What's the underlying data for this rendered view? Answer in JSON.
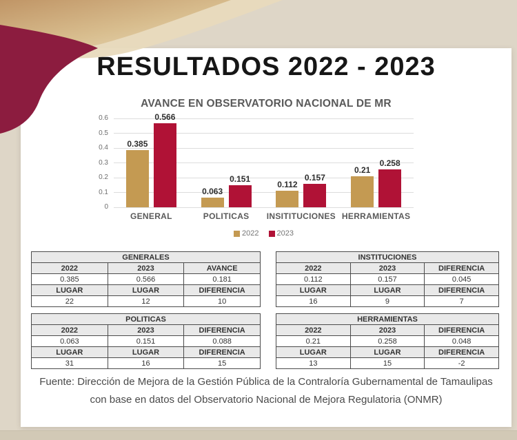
{
  "slide": {
    "title": "RESULTADOS 2022 - 2023",
    "footer_line1": "Fuente: Dirección de Mejora de la Gestión Pública de la Contraloría Gubernamental de Tamaulipas",
    "footer_line2": "con base en datos del Observatorio Nacional de Mejora Regulatoria (ONMR)"
  },
  "theme": {
    "background_beige": "#ded6c7",
    "swoosh_tan": "#c9a36c",
    "swoosh_maroon": "#8c1c3f",
    "card_white": "#ffffff"
  },
  "chart_data": {
    "type": "bar",
    "title": "AVANCE EN OBSERVATORIO NACIONAL DE MR",
    "categories": [
      "GENERAL",
      "POLITICAS",
      "INSITITUCIONES",
      "HERRAMIENTAS"
    ],
    "series": [
      {
        "name": "2022",
        "color": "#c49a52",
        "values": [
          0.385,
          0.063,
          0.112,
          0.21
        ]
      },
      {
        "name": "2023",
        "color": "#b01236",
        "values": [
          0.566,
          0.151,
          0.157,
          0.258
        ]
      }
    ],
    "xlabel": "",
    "ylabel": "",
    "ylim": [
      0,
      0.6
    ],
    "yticks": [
      0,
      0.1,
      0.2,
      0.3,
      0.4,
      0.5,
      0.6
    ],
    "grid": true,
    "data_labels": true,
    "legend_position": "bottom"
  },
  "tables": [
    {
      "title": "GENERALES",
      "header1": [
        "2022",
        "2023",
        "AVANCE"
      ],
      "row1": [
        "0.385",
        "0.566",
        "0.181"
      ],
      "header2": [
        "LUGAR",
        "LUGAR",
        "DIFERENCIA"
      ],
      "row2": [
        "22",
        "12",
        "10"
      ]
    },
    {
      "title": "INSTITUCIONES",
      "header1": [
        "2022",
        "2023",
        "DIFERENCIA"
      ],
      "row1": [
        "0.112",
        "0.157",
        "0.045"
      ],
      "header2": [
        "LUGAR",
        "LUGAR",
        "DIFERENCIA"
      ],
      "row2": [
        "16",
        "9",
        "7"
      ]
    },
    {
      "title": "POLITICAS",
      "header1": [
        "2022",
        "2023",
        "DIFERENCIA"
      ],
      "row1": [
        "0.063",
        "0.151",
        "0.088"
      ],
      "header2": [
        "LUGAR",
        "LUGAR",
        "DIFERENCIA"
      ],
      "row2": [
        "31",
        "16",
        "15"
      ]
    },
    {
      "title": "HERRAMIENTAS",
      "header1": [
        "2022",
        "2023",
        "DIFERENCIA"
      ],
      "row1": [
        "0.21",
        "0.258",
        "0.048"
      ],
      "header2": [
        "LUGAR",
        "LUGAR",
        "DIFERENCIA"
      ],
      "row2": [
        "13",
        "15",
        "-2"
      ]
    }
  ]
}
